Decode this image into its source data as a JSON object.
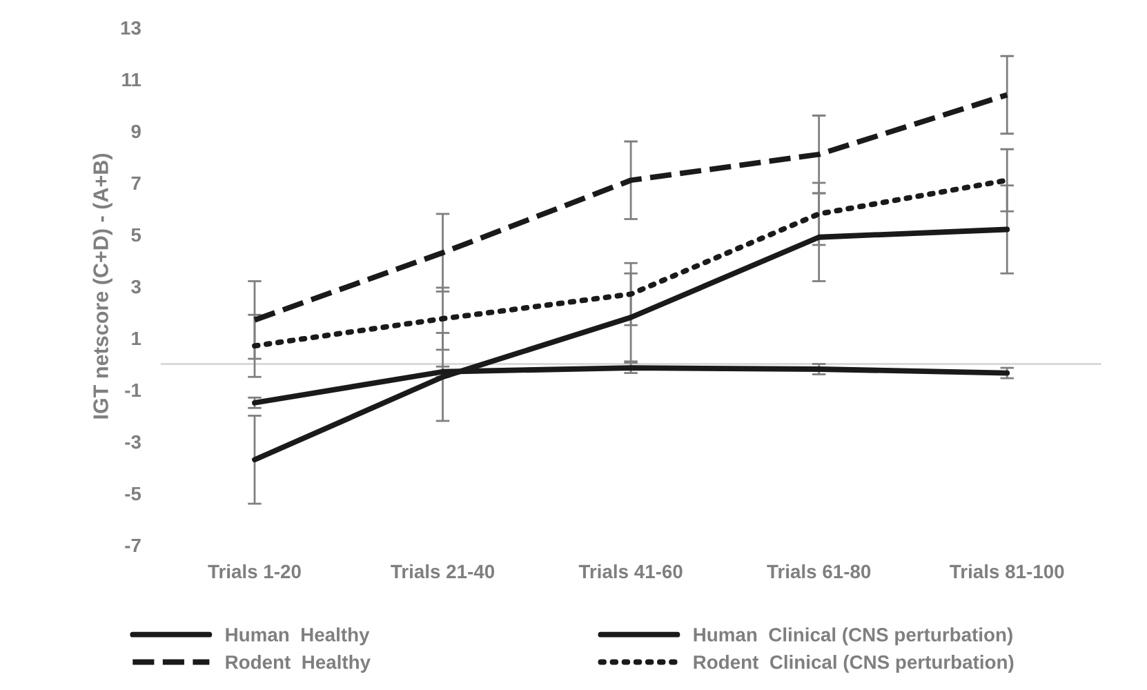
{
  "chart_data": {
    "type": "line",
    "ylabel": "IGT netscore (C+D) - (A+B)",
    "categories": [
      "Trials 1-20",
      "Trials 21-40",
      "Trials 41-60",
      "Trials 61-80",
      "Trials 81-100"
    ],
    "series": [
      {
        "name": "Human  Healthy",
        "color": "#1a1a1a",
        "line_style": "solid",
        "values": [
          -3.7,
          -0.5,
          1.8,
          4.9,
          5.2
        ],
        "errors": [
          1.7,
          1.7,
          1.7,
          1.7,
          1.7
        ]
      },
      {
        "name": "Human  Clinical (CNS perturbation)",
        "color": "#1a1a1a",
        "line_style": "solid",
        "values": [
          -1.5,
          -0.3,
          -0.15,
          -0.2,
          -0.35
        ],
        "errors": [
          0.2,
          0.2,
          0.2,
          0.2,
          0.2
        ]
      },
      {
        "name": "Rodent  Healthy",
        "color": "#1a1a1a",
        "line_style": "dashed",
        "values": [
          1.7,
          4.3,
          7.1,
          8.1,
          10.4
        ],
        "errors": [
          1.5,
          1.5,
          1.5,
          1.5,
          1.5
        ]
      },
      {
        "name": "Rodent  Clinical (CNS perturbation)",
        "color": "#1a1a1a",
        "line_style": "dotted",
        "values": [
          0.7,
          1.75,
          2.7,
          5.8,
          7.1
        ],
        "errors": [
          1.2,
          1.2,
          1.2,
          1.2,
          1.2
        ]
      }
    ],
    "ylim": [
      -7,
      13
    ],
    "yticks": [
      -7,
      -5,
      -3,
      -1,
      1,
      3,
      5,
      7,
      9,
      11,
      13
    ],
    "ref_lines": [
      {
        "axis": "y",
        "value": 0,
        "color": "#d9d9d9"
      }
    ],
    "grid": false,
    "legend": "bottom",
    "marker": "none"
  }
}
